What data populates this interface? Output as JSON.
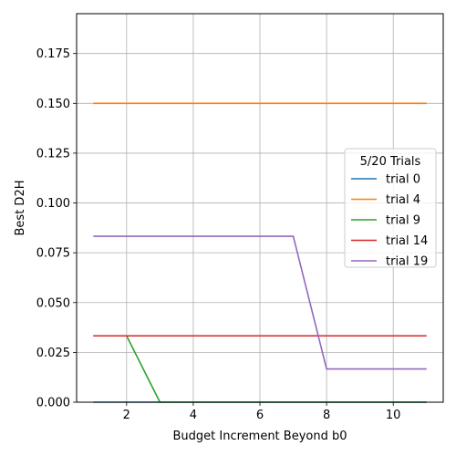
{
  "chart_data": {
    "type": "line",
    "title": "",
    "xlabel": "Budget Increment Beyond b0",
    "ylabel": "Best D2H",
    "xlim": [
      0.5,
      11.5
    ],
    "ylim": [
      0.0,
      0.195
    ],
    "xticks": [
      2,
      4,
      6,
      8,
      10
    ],
    "yticks": [
      0.0,
      0.025,
      0.05,
      0.075,
      0.1,
      0.125,
      0.15,
      0.175
    ],
    "xtick_labels": [
      "2",
      "4",
      "6",
      "8",
      "10"
    ],
    "ytick_labels": [
      "0.000",
      "0.025",
      "0.050",
      "0.075",
      "0.100",
      "0.125",
      "0.150",
      "0.175"
    ],
    "grid": true,
    "legend": {
      "title": "5/20 Trials",
      "placement": "center-right"
    },
    "x": [
      1,
      2,
      3,
      4,
      5,
      6,
      7,
      8,
      9,
      10,
      11
    ],
    "series": [
      {
        "name": "trial 0",
        "color": "#1f77b4",
        "values": [
          0,
          0,
          0,
          0,
          0,
          0,
          0,
          0,
          0,
          0,
          0
        ]
      },
      {
        "name": "trial 4",
        "color": "#ff7f0e",
        "values": [
          0.15,
          0.15,
          0.15,
          0.15,
          0.15,
          0.15,
          0.15,
          0.15,
          0.15,
          0.15,
          0.15
        ]
      },
      {
        "name": "trial 9",
        "color": "#2ca02c",
        "values": [
          0.0333,
          0.0333,
          0,
          0,
          0,
          0,
          0,
          0,
          0,
          0,
          0
        ]
      },
      {
        "name": "trial 14",
        "color": "#d62728",
        "values": [
          0.0333,
          0.0333,
          0.0333,
          0.0333,
          0.0333,
          0.0333,
          0.0333,
          0.0333,
          0.0333,
          0.0333,
          0.0333
        ]
      },
      {
        "name": "trial 19",
        "color": "#9467bd",
        "values": [
          0.0833,
          0.0833,
          0.0833,
          0.0833,
          0.0833,
          0.0833,
          0.0833,
          0.0167,
          0.0167,
          0.0167,
          0.0167
        ]
      }
    ]
  }
}
